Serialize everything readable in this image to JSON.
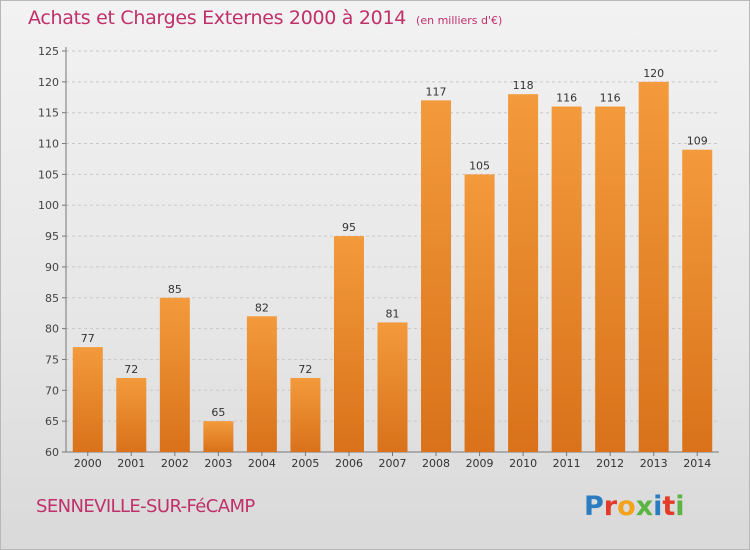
{
  "header": {
    "title": "Achats et Charges Externes 2000 à 2014",
    "unit": "(en milliers d'€)"
  },
  "footer": {
    "place": "SENNEVILLE-SUR-FéCAMP",
    "logo": "Proxiti",
    "logo_colors": [
      "#2a7dc1",
      "#e23b2a",
      "#f2a31b",
      "#5bb443",
      "#2a7dc1",
      "#e23b2a",
      "#5bb443"
    ]
  },
  "colors": {
    "bar": "#f39a3c",
    "bar_dark": "#d9721a",
    "text": "#c0306a"
  },
  "chart_data": {
    "type": "bar",
    "categories": [
      "2000",
      "2001",
      "2002",
      "2003",
      "2004",
      "2005",
      "2006",
      "2007",
      "2008",
      "2009",
      "2010",
      "2011",
      "2012",
      "2013",
      "2014"
    ],
    "values": [
      77,
      72,
      85,
      65,
      82,
      72,
      95,
      81,
      117,
      105,
      118,
      116,
      116,
      120,
      109
    ],
    "ylim": [
      60,
      125
    ],
    "yticks": [
      60,
      65,
      70,
      75,
      80,
      85,
      90,
      95,
      100,
      105,
      110,
      115,
      120,
      125
    ],
    "grid": true
  }
}
